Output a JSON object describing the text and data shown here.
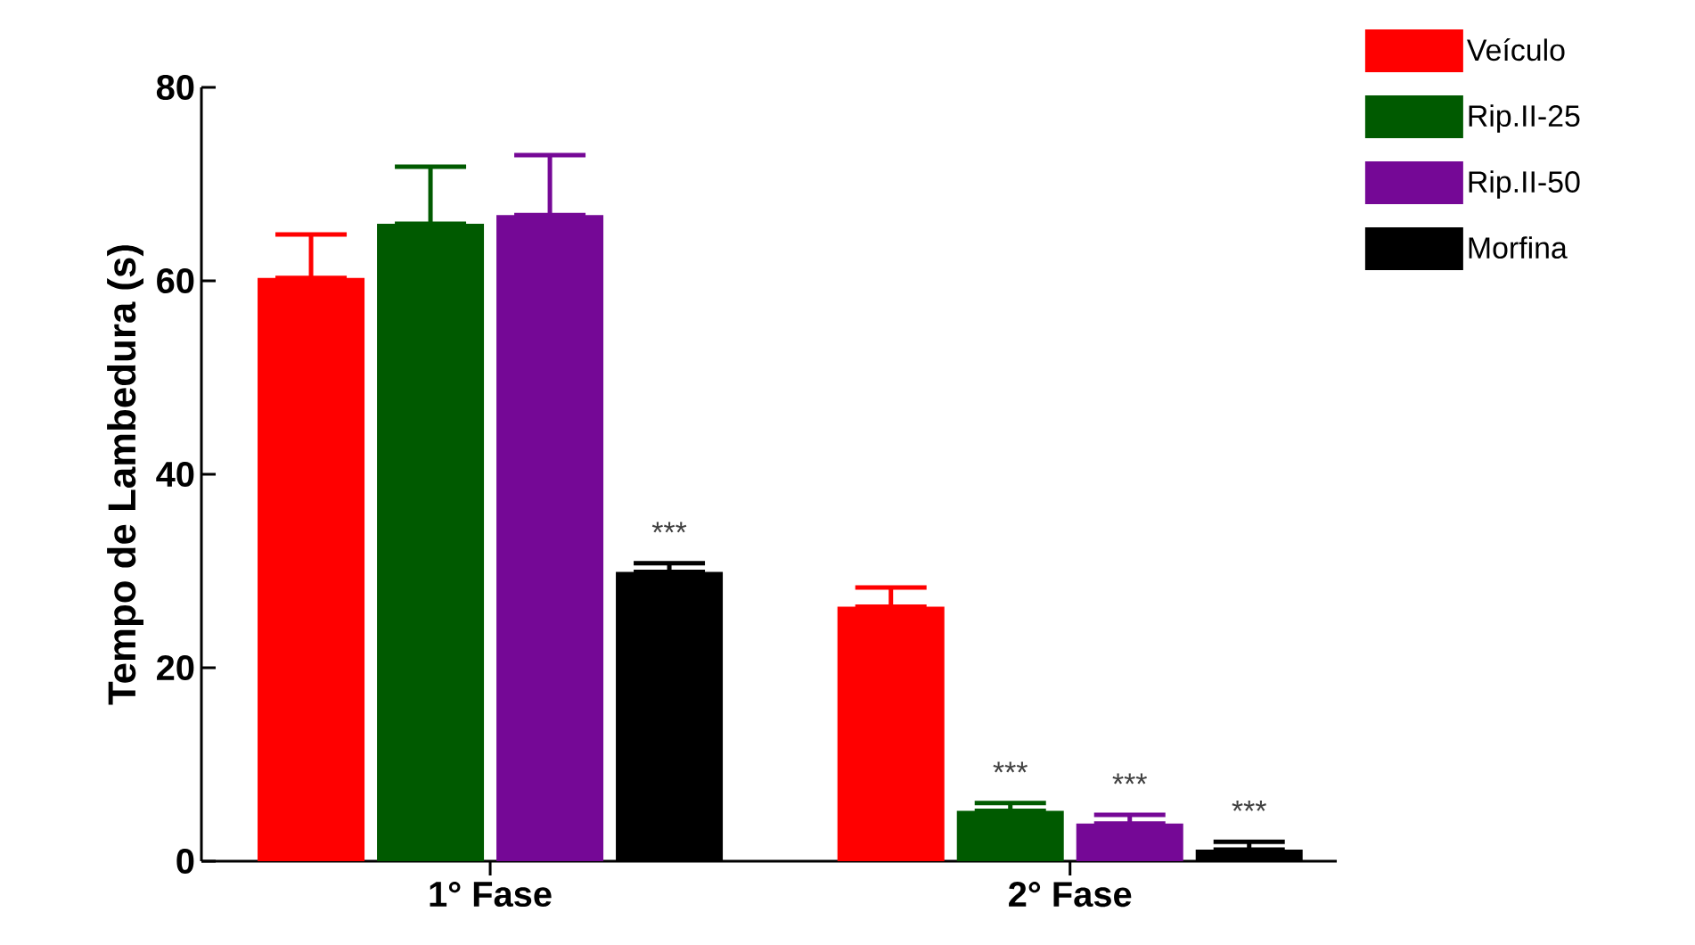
{
  "chart_data": {
    "type": "bar",
    "ylabel": "Tempo de Lambedura (s)",
    "categories": [
      "1° Fase",
      "2° Fase"
    ],
    "ylim": [
      0,
      80
    ],
    "yticks": [
      0,
      20,
      40,
      60,
      80
    ],
    "grid": false,
    "legend": "top right",
    "series": [
      {
        "name": "Veículo",
        "color": "#ff0000",
        "values": [
          60.3,
          26.3
        ],
        "errors": [
          [
            60.3,
            64.8
          ],
          [
            26.3,
            28.3
          ]
        ]
      },
      {
        "name": "Rip.II-25",
        "color": "#005a00",
        "values": [
          65.9,
          5.2
        ],
        "errors": [
          [
            65.9,
            71.8
          ],
          [
            5.2,
            6.0
          ]
        ],
        "value_labels": [
          null,
          "***"
        ]
      },
      {
        "name": "Rip.II-50",
        "color": "#750896",
        "values": [
          66.8,
          3.9
        ],
        "errors": [
          [
            66.8,
            73.0
          ],
          [
            3.9,
            4.8
          ]
        ],
        "value_labels": [
          null,
          "***"
        ]
      },
      {
        "name": "Morfina",
        "color": "#000000",
        "values": [
          29.9,
          1.2
        ],
        "errors": [
          [
            29.9,
            30.8
          ],
          [
            1.2,
            2.0
          ]
        ],
        "value_labels": [
          "***",
          "***"
        ]
      }
    ]
  }
}
